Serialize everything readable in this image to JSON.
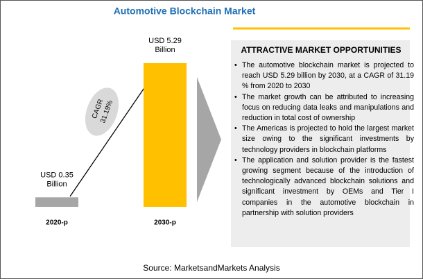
{
  "chart_data": {
    "type": "bar",
    "title": "Automotive Blockchain Market",
    "categories": [
      "2020-p",
      "2030-p"
    ],
    "values": [
      0.35,
      5.29
    ],
    "value_labels": [
      "USD 0.35 Billion",
      "USD 5.29 Billion"
    ],
    "colors": [
      "#a6a6a6",
      "#ffc000"
    ],
    "annotations": [
      "CAGR",
      "31.19%"
    ]
  },
  "panel": {
    "title": "ATTRACTIVE MARKET OPPORTUNITIES",
    "bullets": [
      "The automotive blockchain market is projected to reach USD 5.29 billion by 2030, at a CAGR of 31.19 % from 2020 to 2030",
      "The market growth can be attributed to increasing focus on reducing data leaks and manipulations and reduction in total cost of ownership",
      "The Americas is projected to hold the largest market size owing to the significant investments by technology providers in blockchain platforms",
      "The application and solution provider is the fastest growing segment because of the introduction of technologically advanced blockchain solutions and significant investment by OEMs and Tier I companies in the automotive blockchain in partnership with solution providers"
    ]
  },
  "source": "Source: MarketsandMarkets Analysis"
}
